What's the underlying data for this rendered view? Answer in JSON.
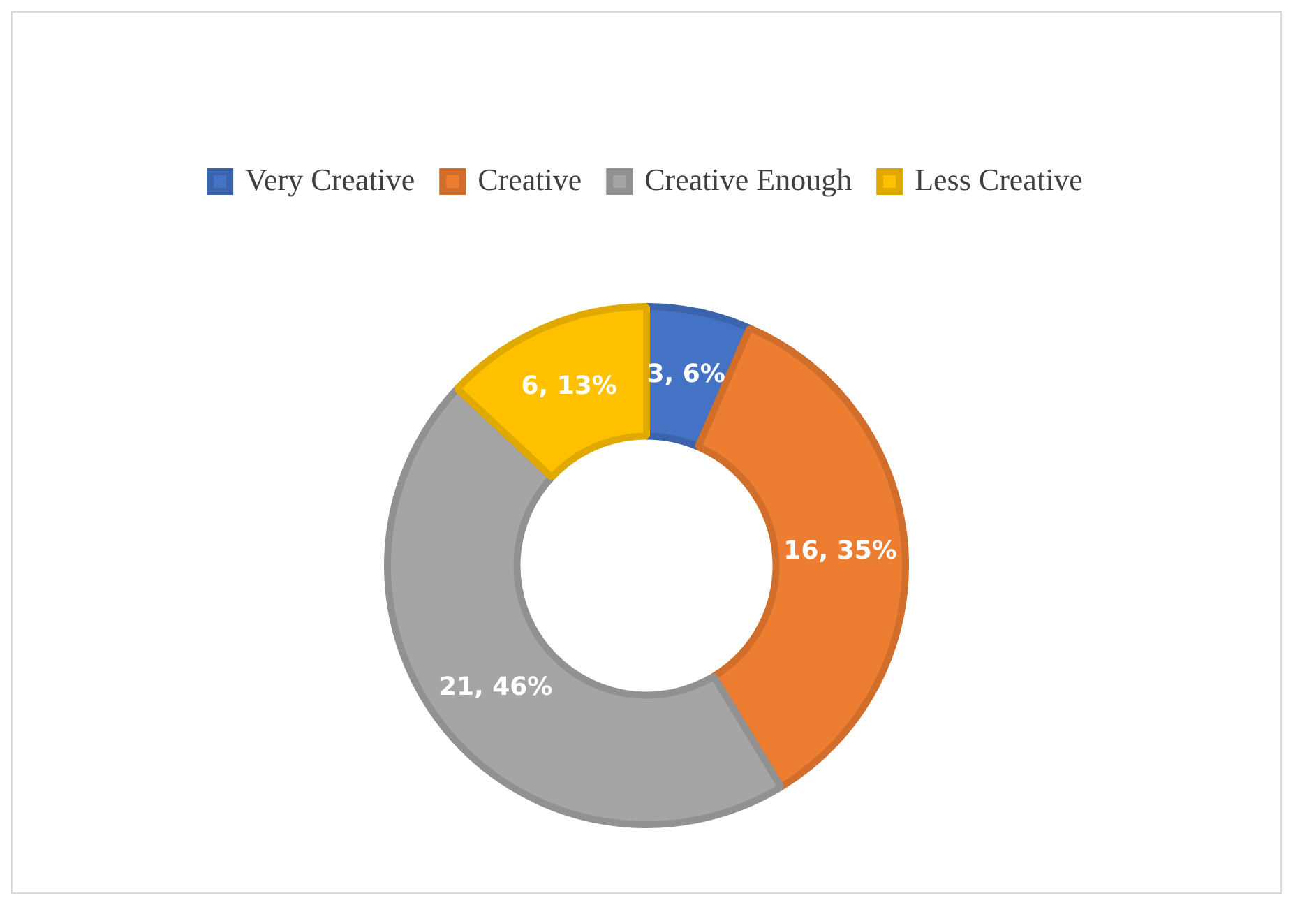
{
  "chart_data": {
    "type": "donut",
    "categories": [
      "Very Creative",
      "Creative",
      "Creative Enough",
      "Less Creative"
    ],
    "values": [
      3,
      16,
      21,
      6
    ],
    "colors": [
      "#4472c4",
      "#ed7d31",
      "#a5a5a5",
      "#ffc000"
    ],
    "value_labels": [
      "3, 6%",
      "16, 35%",
      "21, 46%",
      "6, 13%"
    ],
    "legend": "top"
  }
}
